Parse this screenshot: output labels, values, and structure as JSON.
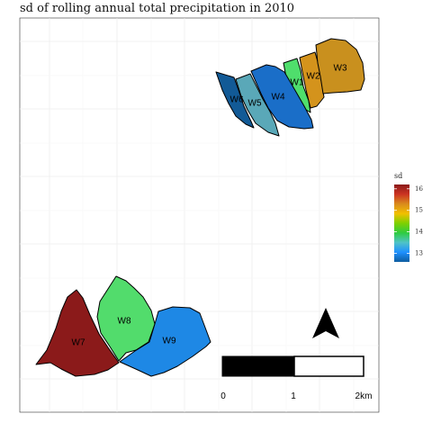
{
  "title": "sd of rolling annual total precipitation in 2010",
  "legend": {
    "title": "sd",
    "ticks": [
      "16",
      "15",
      "14",
      "13"
    ],
    "tick_values": [
      16,
      15,
      14,
      13
    ],
    "range": [
      12.6,
      16.2
    ],
    "colors": [
      "#0d5da0",
      "#1e90ff",
      "#4fc3c8",
      "#2ecc40",
      "#7fd000",
      "#f2c000",
      "#d98a1c",
      "#cc3322",
      "#8b1a1a"
    ]
  },
  "watersheds": [
    {
      "name": "W1",
      "color": "#4fde6c"
    },
    {
      "name": "W2",
      "color": "#d4931c"
    },
    {
      "name": "W3",
      "color": "#c9901e"
    },
    {
      "name": "W4",
      "color": "#1a6ec8"
    },
    {
      "name": "W5",
      "color": "#5aa8b8"
    },
    {
      "name": "W6",
      "color": "#125a96"
    },
    {
      "name": "W7",
      "color": "#8b1a1a"
    },
    {
      "name": "W8",
      "color": "#52dc6c"
    },
    {
      "name": "W9",
      "color": "#1e88e5"
    }
  ],
  "scalebar": {
    "ticks": [
      "0",
      "1",
      "2km"
    ]
  },
  "north_arrow": "north-arrow-icon"
}
